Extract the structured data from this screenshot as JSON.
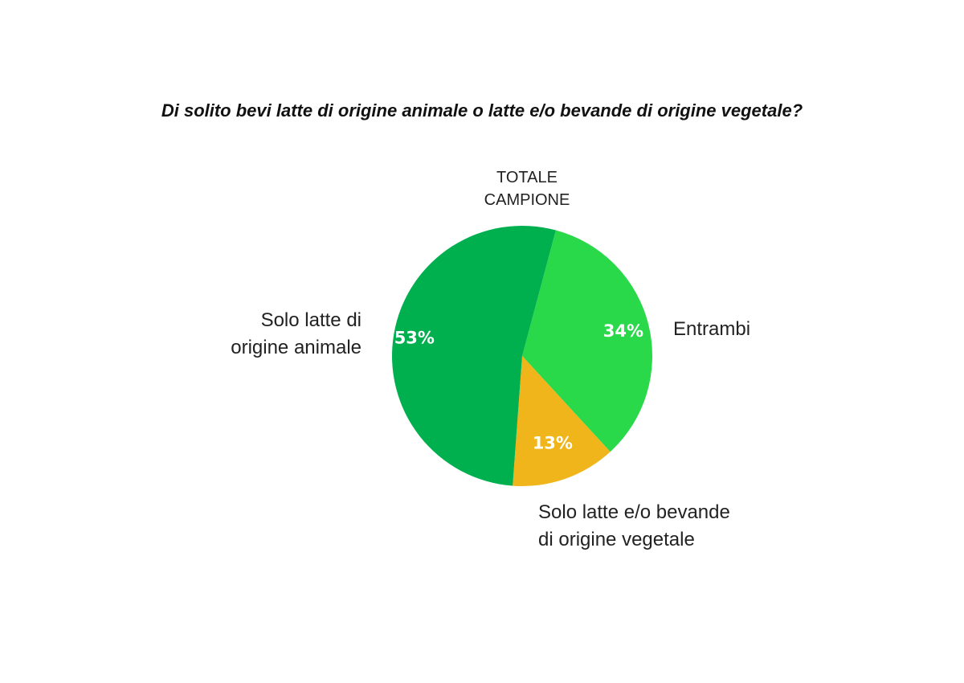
{
  "chart_data": {
    "type": "pie",
    "title": "Di solito bevi latte di origine animale o latte e/o bevande di origine vegetale?",
    "subtitle": [
      "TOTALE",
      "CAMPIONE"
    ],
    "slices": [
      {
        "label_lines": [
          "Entrambi"
        ],
        "value": 34,
        "value_label": "34%",
        "color": "#29d94a"
      },
      {
        "label_lines": [
          "Solo latte e/o bevande",
          "di origine vegetale"
        ],
        "value": 13,
        "value_label": "13%",
        "color": "#f0b51a"
      },
      {
        "label_lines": [
          "Solo latte di",
          "origine animale"
        ],
        "value": 53,
        "value_label": "53%",
        "color": "#00b04f"
      }
    ],
    "value_label_color": "#ffffff"
  }
}
